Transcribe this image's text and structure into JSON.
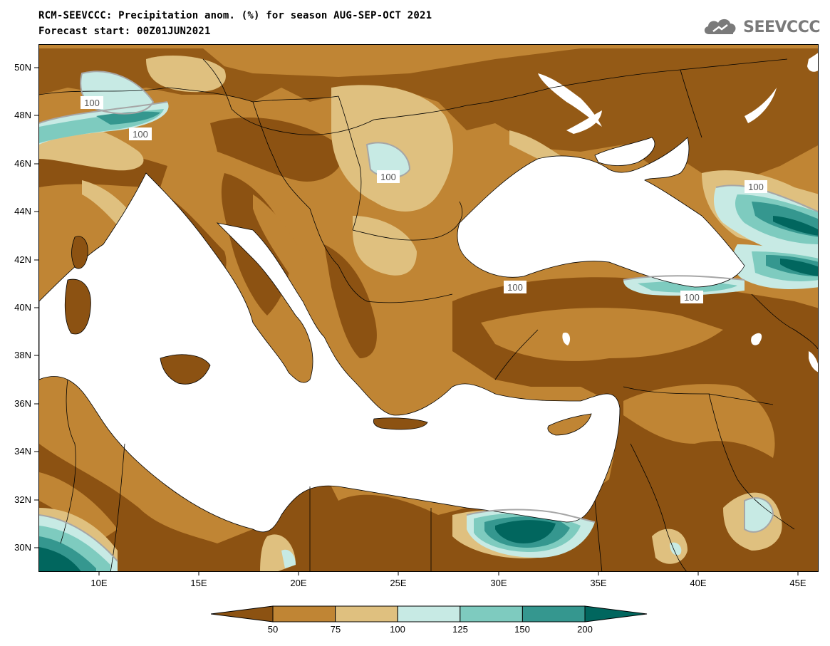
{
  "title_line1": "RCM-SEEVCCC: Precipitation anom. (%) for season AUG-SEP-OCT 2021",
  "title_line2": "Forecast start: 00Z01JUN2021",
  "logo_text": "SEEVCCC",
  "logo_icon": "cloud-icon",
  "lat_labels": [
    "50N",
    "48N",
    "46N",
    "44N",
    "42N",
    "40N",
    "38N",
    "36N",
    "34N",
    "32N",
    "30N"
  ],
  "lon_labels": [
    "10E",
    "15E",
    "20E",
    "25E",
    "30E",
    "35E",
    "40E",
    "45E"
  ],
  "contour_label": "100",
  "colorbar": {
    "ticks": [
      "50",
      "75",
      "100",
      "125",
      "150",
      "200"
    ],
    "colors": [
      "#8c5212",
      "#c08534",
      "#dfc07f",
      "#c7eae4",
      "#7ecbbf",
      "#35978f",
      "#01665e"
    ]
  },
  "palette": {
    "very_dry": "#8c5212",
    "dry": "#c08534",
    "slightly_dry": "#dfc07f",
    "slightly_wet": "#c7eae4",
    "wet": "#7ecbbf",
    "very_wet": "#35978f",
    "extreme_wet": "#01665e",
    "contour_line": "#a6a6a6"
  }
}
